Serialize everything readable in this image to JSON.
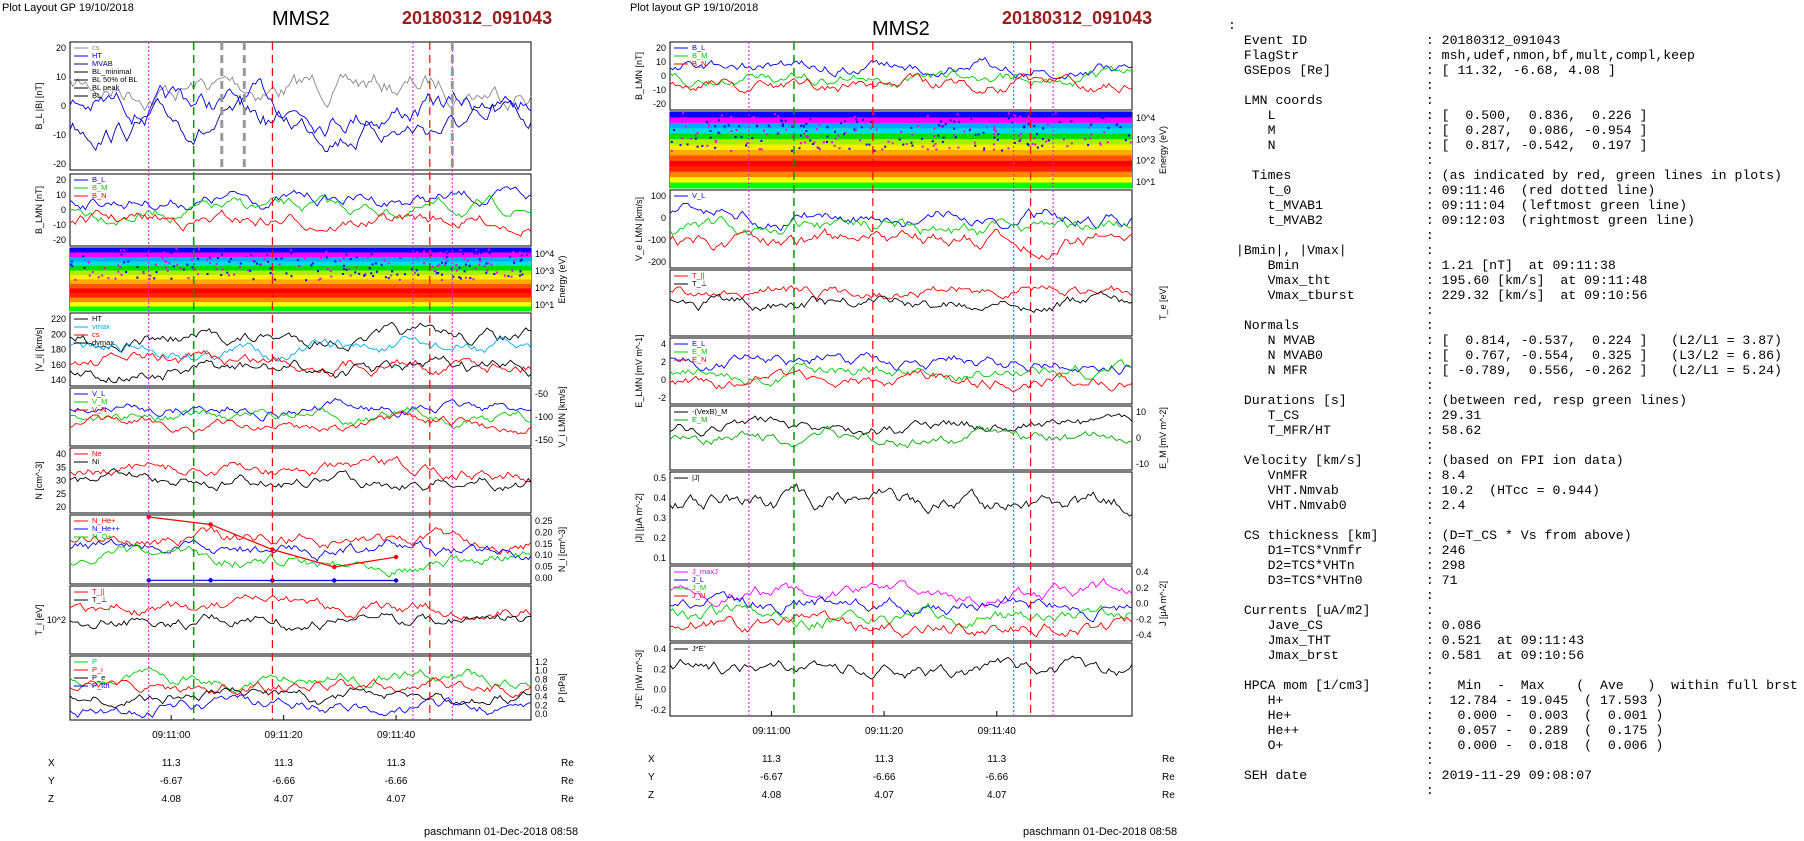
{
  "header_left": "Plot Layout GP 19/10/2018",
  "header_mid": "Plot layout GP 19/10/2018",
  "spacecraft": "MMS2",
  "event_id": "20180312_091043",
  "footer": "paschmann 01-Dec-2018 08:58",
  "colors": {
    "event": "#9c1c1c",
    "red_line": "#ff0000",
    "green_line": "#009900",
    "magenta_line": "#ff00ff",
    "gray_line": "#999999"
  },
  "chart_data": [
    {
      "type": "line",
      "panel": "left",
      "x_ticks": [
        "09:11:00",
        "09:11:20",
        "09:11:40"
      ],
      "marker_lines": {
        "red_dashed": [
          "09:11:18",
          "09:11:46"
        ],
        "green_dashed": [
          "09:11:04"
        ],
        "magenta_dotted": [
          "09:10:56",
          "09:11:43",
          "09:11:50"
        ],
        "gray_dashed": [
          "09:11:09",
          "09:11:13",
          "09:11:50"
        ]
      },
      "position_table": {
        "rows": [
          {
            "name": "X",
            "values": [
              "11.3",
              "11.3",
              "11.3"
            ],
            "unit": "Re"
          },
          {
            "name": "Y",
            "values": [
              "-6.67",
              "-6.66",
              "-6.66"
            ],
            "unit": "Re"
          },
          {
            "name": "Z",
            "values": [
              "4.08",
              "4.07",
              "4.07"
            ],
            "unit": "Re"
          }
        ]
      },
      "panels": [
        {
          "ylabel": "B_L |B| [nT]",
          "yticks": [
            "20",
            "10",
            "0",
            "-10",
            "-20"
          ],
          "legend": [
            "cs",
            "HT",
            "MVAB",
            "BL_minimal",
            "BL 50% of BL",
            "BL peak",
            "BL"
          ]
        },
        {
          "ylabel": "B_LMN [nT]",
          "yticks": [
            "20",
            "10",
            "0",
            "-10",
            "-20"
          ],
          "legend": [
            "B_L",
            "B_M",
            "B_N"
          ]
        },
        {
          "ylabel": "Energy (eV)",
          "yticks": [
            "10^4",
            "10^3",
            "10^2",
            "10^1"
          ],
          "legend": []
        },
        {
          "ylabel": "|V_i| [km/s]",
          "yticks": [
            "220",
            "200",
            "180",
            "160",
            "140"
          ],
          "legend": [
            "HT",
            "vmax",
            "cs",
            "dvmax"
          ]
        },
        {
          "ylabel": "V_i LMN [km/s]",
          "yticks": [
            "-50",
            "-100",
            "-150"
          ],
          "legend": [
            "V_L",
            "V_M",
            "V_N"
          ]
        },
        {
          "ylabel": "N [cm^-3]",
          "yticks": [
            "40",
            "35",
            "30",
            "25",
            "20"
          ],
          "legend": [
            "Ne",
            "Ni"
          ]
        },
        {
          "ylabel": "N_i [cm^-3]",
          "yticks": [
            "0.25",
            "0.20",
            "0.15",
            "0.10",
            "0.05",
            "0.00"
          ],
          "legend": [
            "N_He+",
            "N_He++",
            "N_O+"
          ],
          "series": [
            {
              "name": "N_He++",
              "x": [
                "09:10:56",
                "09:11:07",
                "09:11:18",
                "09:11:29",
                "09:11:40"
              ],
              "values": [
                0.26,
                0.23,
                0.13,
                0.06,
                0.1
              ]
            },
            {
              "name": "N_O+",
              "x": [
                "09:10:56",
                "09:11:07",
                "09:11:18",
                "09:11:29",
                "09:11:40"
              ],
              "values": [
                0.007,
                0.007,
                0.006,
                0.006,
                0.006
              ]
            }
          ]
        },
        {
          "ylabel": "T_i [eV]",
          "yticks": [
            "10^2"
          ],
          "legend": [
            "T_||",
            "T_⊥"
          ]
        },
        {
          "ylabel": "P [nPa]",
          "yticks": [
            "1.2",
            "1.0",
            "0.8",
            "0.6",
            "0.4",
            "0.2",
            "0.0"
          ],
          "legend": [
            "P",
            "P_i",
            "P_e",
            "P_tot"
          ]
        }
      ]
    },
    {
      "type": "line",
      "panel": "middle",
      "x_ticks": [
        "09:11:00",
        "09:11:20",
        "09:11:40"
      ],
      "marker_lines": {
        "red_dashed": [
          "09:11:18",
          "09:11:46"
        ],
        "green_dashed": [
          "09:11:04"
        ],
        "magenta_dotted": [
          "09:10:56",
          "09:11:43",
          "09:11:50"
        ]
      },
      "position_table": {
        "rows": [
          {
            "name": "X",
            "values": [
              "11.3",
              "11.3",
              "11.3"
            ],
            "unit": "Re"
          },
          {
            "name": "Y",
            "values": [
              "-6.67",
              "-6.66",
              "-6.66"
            ],
            "unit": "Re"
          },
          {
            "name": "Z",
            "values": [
              "4.08",
              "4.07",
              "4.07"
            ],
            "unit": "Re"
          }
        ]
      },
      "panels": [
        {
          "ylabel": "B_LMN [nT]",
          "yticks": [
            "20",
            "10",
            "0",
            "-10",
            "-20"
          ],
          "legend": [
            "B_L",
            "B_M",
            "B_N"
          ]
        },
        {
          "ylabel": "Energy (eV)",
          "yticks": [
            "10^4",
            "10^3",
            "10^2",
            "10^1"
          ],
          "legend": []
        },
        {
          "ylabel": "V_e LMN [km/s]",
          "yticks": [
            "100",
            "0",
            "-100",
            "-200"
          ],
          "legend": [
            "V_L"
          ]
        },
        {
          "ylabel": "T_e [eV]",
          "yticks": [],
          "legend": [
            "T_||",
            "T_⊥"
          ]
        },
        {
          "ylabel": "E_LMN [mV m^-1]",
          "yticks": [
            "4",
            "2",
            "0",
            "-2"
          ],
          "legend": [
            "E_L",
            "E_M",
            "E_N"
          ]
        },
        {
          "ylabel": "E_M [mV m^-2]",
          "yticks": [
            "10",
            "0",
            "-10"
          ],
          "legend": [
            "-(VexB)_M",
            "E_M"
          ]
        },
        {
          "ylabel": "|J| [μA m^-2]",
          "yticks": [
            "0.5",
            "0.4",
            "0.3",
            "0.2",
            "0.1"
          ],
          "legend": [
            "|J|"
          ]
        },
        {
          "ylabel": "J [μA m^-2]",
          "yticks": [
            "0.4",
            "0.2",
            "0.0",
            "-0.2",
            "-0.4"
          ],
          "legend": [
            "J_maxJ",
            "J_L",
            "J_M",
            "J_N"
          ]
        },
        {
          "ylabel": "J*E' [nW m^-3]",
          "yticks": [
            "0.4",
            "0.2",
            "0.0",
            "-0.2"
          ],
          "legend": [
            "J*E'"
          ]
        }
      ]
    }
  ],
  "info_lines": [
    ":",
    "  Event ID               : 20180312_091043",
    "  FlagStr                : msh,udef,nmon,bf,mult,compl,keep",
    "  GSEpos [Re]            : [ 11.32, -6.68, 4.08 ]",
    "                         :",
    "  LMN coords             :",
    "     L                   : [  0.500,  0.836,  0.226 ]",
    "     M                   : [  0.287,  0.086, -0.954 ]",
    "     N                   : [  0.817, -0.542,  0.197 ]",
    "                         :",
    "   Times                 : (as indicated by red, green lines in plots)",
    "     t_0                 : 09:11:46  (red dotted line)",
    "     t_MVAB1             : 09:11:04  (leftmost green line)",
    "     t_MVAB2             : 09:12:03  (rightmost green line)",
    "                         :",
    " |Bmin|, |Vmax|          :",
    "     Bmin                : 1.21 [nT]  at 09:11:38",
    "     Vmax_tht            : 195.60 [km/s]  at 09:11:48",
    "     Vmax_tburst         : 229.32 [km/s]  at 09:10:56",
    "                         :",
    "  Normals                :",
    "     N MVAB              : [  0.814, -0.537,  0.224 ]   (L2/L1 = 3.87)",
    "     N MVAB0             : [  0.767, -0.554,  0.325 ]   (L3/L2 = 6.86)",
    "     N MFR               : [ -0.789,  0.556, -0.262 ]   (L2/L1 = 5.24)",
    "                         :",
    "  Durations [s]          : (between red, resp green lines)",
    "     T_CS                : 29.31",
    "     T_MFR/HT            : 58.62",
    "                         :",
    "  Velocity [km/s]        : (based on FPI ion data)",
    "     VnMFR               : 8.4",
    "     VHT.Nmvab           : 10.2  (HTcc = 0.944)",
    "     VHT.Nmvab0          : 2.4",
    "                         :",
    "  CS thickness [km]      : (D=T_CS * Vs from above)",
    "     D1=TCS*Vnmfr        : 246",
    "     D2=TCS*VHTn         : 298",
    "     D3=TCS*VHTn0        : 71",
    "                         :",
    "  Currents [uA/m2]       :",
    "     Jave_CS             : 0.086",
    "     Jmax_THT            : 0.521  at 09:11:43",
    "     Jmax_brst           : 0.581  at 09:10:56",
    "                         :",
    "  HPCA mom [1/cm3]       :   Min  -  Max    (  Ave   )  within full brst int",
    "     H+                  :  12.784 - 19.045  ( 17.593 )",
    "     He+                 :   0.000 -  0.003  (  0.001 )",
    "     He++                :   0.057 -  0.289  (  0.175 )",
    "     O+                  :   0.000 -  0.018  (  0.006 )",
    "                         :",
    "  SEH date               : 2019-11-29 09:08:07",
    "                         :"
  ]
}
